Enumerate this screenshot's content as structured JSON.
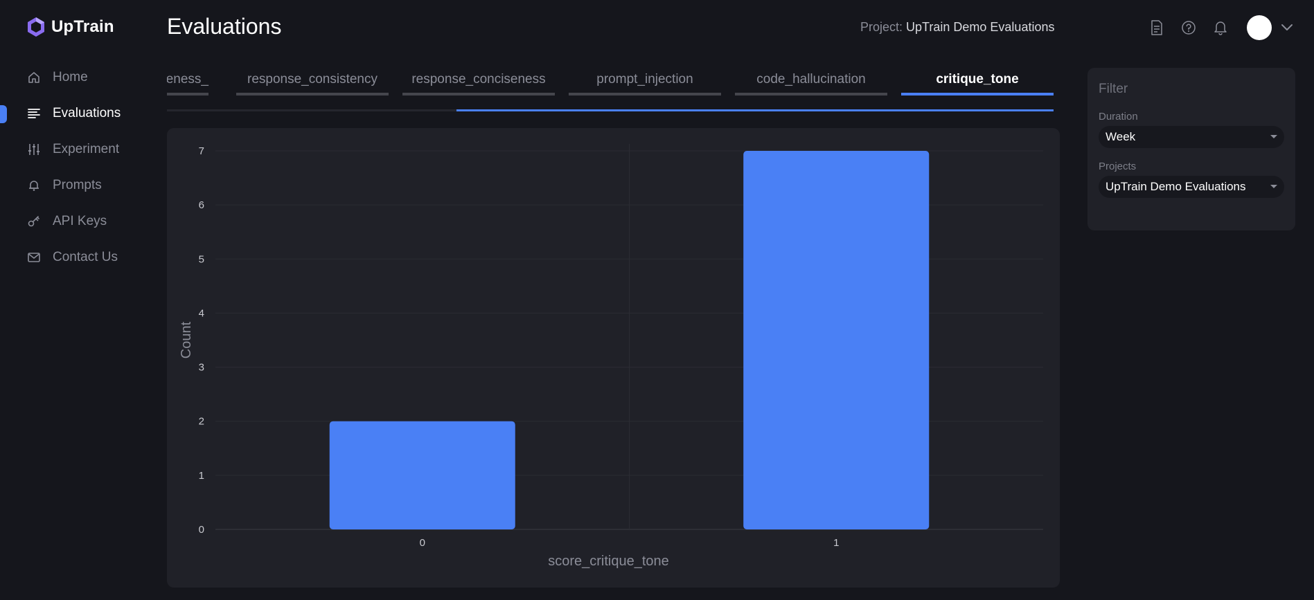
{
  "app": {
    "name": "UpTrain"
  },
  "sidebar": {
    "items": [
      {
        "label": "Home",
        "icon": "home-icon",
        "active": false
      },
      {
        "label": "Evaluations",
        "icon": "list-icon",
        "active": true
      },
      {
        "label": "Experiment",
        "icon": "sliders-icon",
        "active": false
      },
      {
        "label": "Prompts",
        "icon": "bell-icon",
        "active": false
      },
      {
        "label": "API Keys",
        "icon": "key-icon",
        "active": false
      },
      {
        "label": "Contact Us",
        "icon": "mail-icon",
        "active": false
      }
    ]
  },
  "header": {
    "title": "Evaluations",
    "project_label": "Project:",
    "project_name": "UpTrain Demo Evaluations"
  },
  "tabs": [
    {
      "label": "pleteness_",
      "active": false
    },
    {
      "label": "response_consistency",
      "active": false
    },
    {
      "label": "response_conciseness",
      "active": false
    },
    {
      "label": "prompt_injection",
      "active": false
    },
    {
      "label": "code_hallucination",
      "active": false
    },
    {
      "label": "critique_tone",
      "active": true
    }
  ],
  "filter": {
    "title": "Filter",
    "duration_label": "Duration",
    "duration_value": "Week",
    "projects_label": "Projects",
    "projects_value": "UpTrain Demo Evaluations"
  },
  "chart_data": {
    "type": "bar",
    "categories": [
      "0",
      "1"
    ],
    "values": [
      2,
      7
    ],
    "xlabel": "score_critique_tone",
    "ylabel": "Count",
    "ylim": [
      0,
      7
    ],
    "yticks": [
      "0",
      "1",
      "2",
      "3",
      "4",
      "5",
      "6",
      "7"
    ],
    "bar_color": "#4a80f5",
    "grid": true
  },
  "colors": {
    "accent": "#4a80f5",
    "background": "#15161c",
    "card": "#202128"
  }
}
